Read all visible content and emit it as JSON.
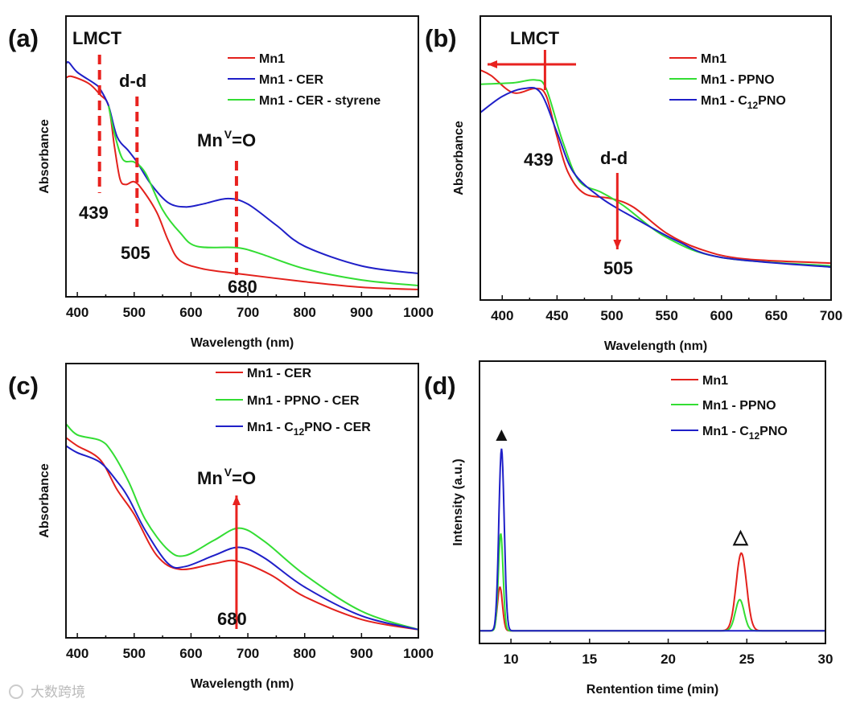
{
  "colors": {
    "red": "#e3211c",
    "blue": "#1f1fc8",
    "green": "#33dd33",
    "annotation": "#e8221f",
    "axis": "#111111"
  },
  "watermark": "大数跨境",
  "chart_data": [
    {
      "panel": "(a)",
      "type": "line",
      "xlabel": "Wavelength (nm)",
      "ylabel": "Absorbance",
      "xlim": [
        380,
        1000
      ],
      "ylim": [
        0,
        1
      ],
      "xticks": [
        400,
        500,
        600,
        700,
        800,
        900,
        1000
      ],
      "series": [
        {
          "name": "Mn1",
          "label": [
            "Mn1"
          ],
          "color": "red",
          "points": [
            [
              380,
              0.78
            ],
            [
              390,
              0.785
            ],
            [
              420,
              0.76
            ],
            [
              440,
              0.72
            ],
            [
              455,
              0.68
            ],
            [
              465,
              0.54
            ],
            [
              475,
              0.42
            ],
            [
              485,
              0.4
            ],
            [
              500,
              0.41
            ],
            [
              515,
              0.38
            ],
            [
              540,
              0.3
            ],
            [
              560,
              0.2
            ],
            [
              580,
              0.13
            ],
            [
              620,
              0.1
            ],
            [
              680,
              0.083
            ],
            [
              800,
              0.054
            ],
            [
              900,
              0.034
            ],
            [
              1000,
              0.026
            ]
          ]
        },
        {
          "name": "Mn1 - CER",
          "label": [
            "Mn1 - CER"
          ],
          "color": "blue",
          "points": [
            [
              380,
              0.83
            ],
            [
              385,
              0.835
            ],
            [
              400,
              0.8
            ],
            [
              430,
              0.76
            ],
            [
              440,
              0.74
            ],
            [
              455,
              0.68
            ],
            [
              470,
              0.57
            ],
            [
              490,
              0.52
            ],
            [
              505,
              0.48
            ],
            [
              530,
              0.4
            ],
            [
              560,
              0.335
            ],
            [
              590,
              0.32
            ],
            [
              620,
              0.33
            ],
            [
              665,
              0.35
            ],
            [
              700,
              0.33
            ],
            [
              750,
              0.255
            ],
            [
              800,
              0.18
            ],
            [
              900,
              0.11
            ],
            [
              1000,
              0.083
            ]
          ]
        },
        {
          "name": "Mn1 - CER - styrene",
          "label": [
            "Mn1 - CER - styrene"
          ],
          "color": "green",
          "points": [
            [
              455,
              0.68
            ],
            [
              465,
              0.585
            ],
            [
              480,
              0.49
            ],
            [
              500,
              0.48
            ],
            [
              520,
              0.44
            ],
            [
              550,
              0.31
            ],
            [
              580,
              0.23
            ],
            [
              610,
              0.18
            ],
            [
              680,
              0.175
            ],
            [
              720,
              0.155
            ],
            [
              800,
              0.1
            ],
            [
              900,
              0.06
            ],
            [
              1000,
              0.04
            ]
          ]
        }
      ],
      "annotations": {
        "lmct": "LMCT",
        "dd": "d-d",
        "mno_base": "Mn",
        "mno_sup": "V",
        "mno_rest": "=O",
        "p439": "439",
        "p505": "505",
        "p680": "680"
      }
    },
    {
      "panel": "(b)",
      "type": "line",
      "xlabel": "Wavelength (nm)",
      "ylabel": "Absorbance",
      "xlim": [
        380,
        700
      ],
      "ylim": [
        0,
        1
      ],
      "xticks": [
        400,
        450,
        500,
        550,
        600,
        650,
        700
      ],
      "series": [
        {
          "name": "Mn1",
          "label": [
            "Mn1"
          ],
          "color": "red",
          "points": [
            [
              380,
              0.81
            ],
            [
              390,
              0.79
            ],
            [
              410,
              0.73
            ],
            [
              430,
              0.745
            ],
            [
              440,
              0.72
            ],
            [
              450,
              0.575
            ],
            [
              460,
              0.45
            ],
            [
              475,
              0.375
            ],
            [
              500,
              0.357
            ],
            [
              520,
              0.326
            ],
            [
              550,
              0.235
            ],
            [
              580,
              0.18
            ],
            [
              620,
              0.145
            ],
            [
              700,
              0.13
            ]
          ]
        },
        {
          "name": "Mn1 - PPNO",
          "label": [
            "Mn1 - PPNO"
          ],
          "color": "green",
          "points": [
            [
              380,
              0.76
            ],
            [
              410,
              0.765
            ],
            [
              430,
              0.775
            ],
            [
              440,
              0.745
            ],
            [
              455,
              0.56
            ],
            [
              470,
              0.42
            ],
            [
              490,
              0.38
            ],
            [
              510,
              0.334
            ],
            [
              550,
              0.22
            ],
            [
              600,
              0.15
            ],
            [
              700,
              0.12
            ]
          ]
        },
        {
          "name": "Mn1 - C12PNO",
          "label": [
            "Mn1 - C",
            "12",
            "PNO"
          ],
          "color": "blue",
          "points": [
            [
              380,
              0.66
            ],
            [
              400,
              0.717
            ],
            [
              420,
              0.745
            ],
            [
              435,
              0.73
            ],
            [
              450,
              0.59
            ],
            [
              465,
              0.45
            ],
            [
              490,
              0.36
            ],
            [
              520,
              0.29
            ],
            [
              560,
              0.207
            ],
            [
              600,
              0.15
            ],
            [
              700,
              0.116
            ]
          ]
        }
      ],
      "annotations": {
        "lmct": "LMCT",
        "dd": "d-d",
        "p439": "439",
        "p505": "505"
      }
    },
    {
      "panel": "(c)",
      "type": "line",
      "xlabel": "Wavelength (nm)",
      "ylabel": "Absorbance",
      "xlim": [
        380,
        1000
      ],
      "ylim": [
        0,
        1
      ],
      "xticks": [
        400,
        500,
        600,
        700,
        800,
        900,
        1000
      ],
      "series": [
        {
          "name": "Mn1 - CER",
          "label": [
            "Mn1 - CER"
          ],
          "color": "red",
          "points": [
            [
              380,
              0.73
            ],
            [
              400,
              0.7
            ],
            [
              440,
              0.65
            ],
            [
              470,
              0.54
            ],
            [
              500,
              0.45
            ],
            [
              540,
              0.3
            ],
            [
              580,
              0.25
            ],
            [
              640,
              0.27
            ],
            [
              680,
              0.28
            ],
            [
              740,
              0.23
            ],
            [
              800,
              0.15
            ],
            [
              900,
              0.067
            ],
            [
              1000,
              0.03
            ]
          ]
        },
        {
          "name": "Mn1 - PPNO - CER",
          "label": [
            "Mn1 - PPNO - CER"
          ],
          "color": "green",
          "points": [
            [
              380,
              0.78
            ],
            [
              400,
              0.74
            ],
            [
              440,
              0.72
            ],
            [
              460,
              0.68
            ],
            [
              490,
              0.57
            ],
            [
              520,
              0.43
            ],
            [
              560,
              0.32
            ],
            [
              590,
              0.3
            ],
            [
              640,
              0.355
            ],
            [
              685,
              0.4
            ],
            [
              730,
              0.35
            ],
            [
              800,
              0.23
            ],
            [
              900,
              0.097
            ],
            [
              1000,
              0.03
            ]
          ]
        },
        {
          "name": "Mn1 - C12PNO - CER",
          "label": [
            "Mn1 - C",
            "12",
            "PNO - CER"
          ],
          "color": "blue",
          "points": [
            [
              380,
              0.7
            ],
            [
              400,
              0.675
            ],
            [
              440,
              0.64
            ],
            [
              470,
              0.57
            ],
            [
              490,
              0.51
            ],
            [
              520,
              0.39
            ],
            [
              560,
              0.27
            ],
            [
              590,
              0.26
            ],
            [
              640,
              0.3
            ],
            [
              685,
              0.33
            ],
            [
              730,
              0.29
            ],
            [
              800,
              0.185
            ],
            [
              900,
              0.08
            ],
            [
              1000,
              0.03
            ]
          ]
        }
      ],
      "annotations": {
        "mno_base": "Mn",
        "mno_sup": "V",
        "mno_rest": "=O",
        "p680": "680"
      }
    },
    {
      "panel": "(d)",
      "type": "line",
      "xlabel": "Rentention time (min)",
      "ylabel": "Intensity (a.u.)",
      "xlim": [
        8,
        30
      ],
      "ylim": [
        0,
        1
      ],
      "xticks": [
        10,
        15,
        20,
        25,
        30
      ],
      "baseline": 0.045,
      "series": [
        {
          "name": "Mn1",
          "label": [
            "Mn1"
          ],
          "color": "red",
          "peaks": [
            [
              9.3,
              0.155,
              0.16
            ],
            [
              24.65,
              0.275,
              0.33
            ]
          ]
        },
        {
          "name": "Mn1 - PPNO",
          "label": [
            "Mn1 - PPNO"
          ],
          "color": "green",
          "peaks": [
            [
              9.35,
              0.345,
              0.15
            ],
            [
              24.55,
              0.11,
              0.28
            ]
          ]
        },
        {
          "name": "Mn1 - C12PNO",
          "label": [
            "Mn1 - C",
            "12",
            "PNO"
          ],
          "color": "blue",
          "peaks": [
            [
              9.4,
              0.645,
              0.17
            ]
          ]
        }
      ],
      "annotations": {
        "filled_marker": "▲",
        "open_marker": "△"
      }
    }
  ]
}
